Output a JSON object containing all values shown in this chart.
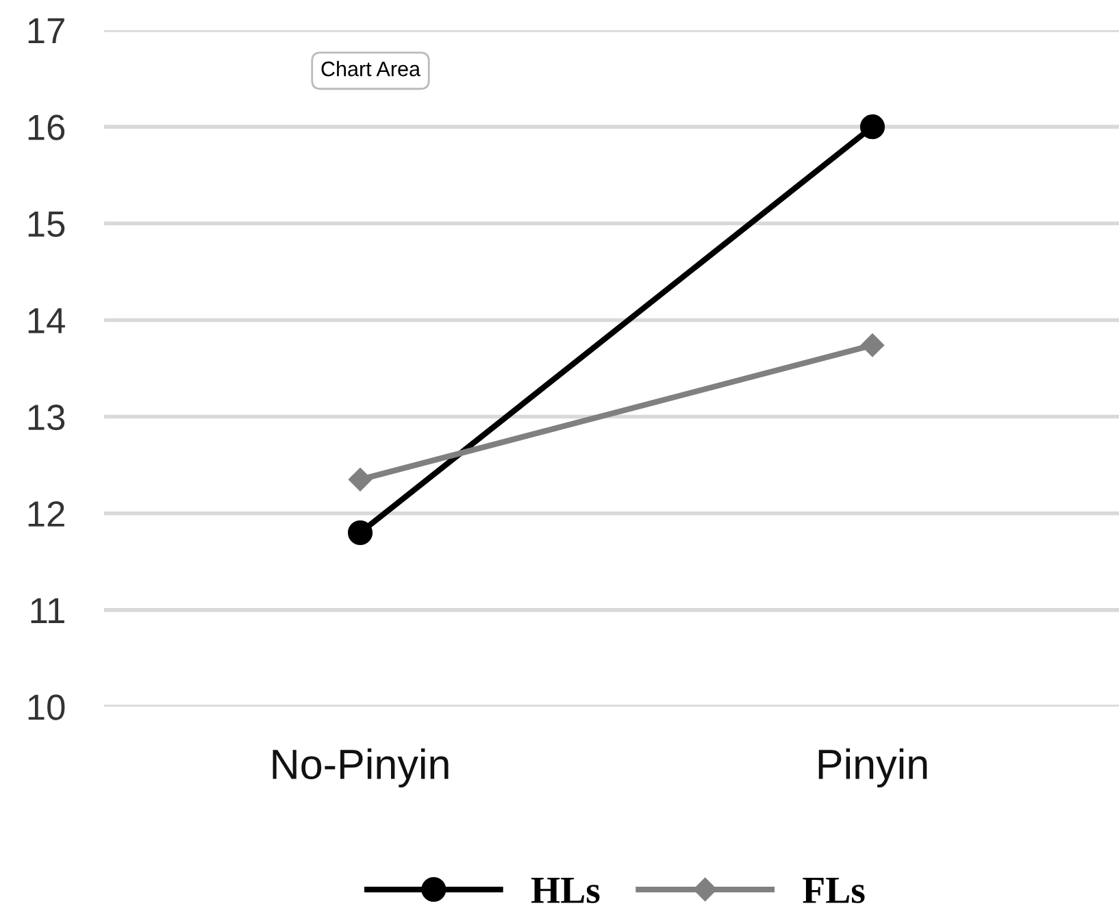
{
  "chart_data": {
    "type": "line",
    "categories": [
      "No-Pinyin",
      "Pinyin"
    ],
    "series": [
      {
        "name": "HLs",
        "color": "#000000",
        "values": [
          11.8,
          16.0
        ],
        "marker": "circle"
      },
      {
        "name": "FLs",
        "color": "#808080",
        "values": [
          12.35,
          13.74
        ],
        "marker": "diamond"
      }
    ],
    "ylim": [
      10,
      17
    ],
    "yticks": [
      10,
      11,
      12,
      13,
      14,
      15,
      16,
      17
    ],
    "grid": "y",
    "legend": "bottom",
    "line_style": "solid",
    "annotations": [
      "Chart Area"
    ]
  }
}
